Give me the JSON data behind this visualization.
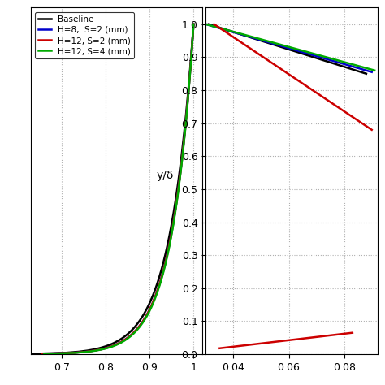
{
  "left_xlim": [
    0.63,
    1.02
  ],
  "left_xticks": [
    0.7,
    0.8,
    0.9,
    1.0
  ],
  "left_ylim": [
    0,
    1.05
  ],
  "left_yticks": [],
  "right_xlim": [
    0.03,
    0.092
  ],
  "right_xticks": [
    0.04,
    0.06,
    0.08
  ],
  "right_ylim": [
    0,
    1.05
  ],
  "right_yticks": [
    0,
    0.1,
    0.2,
    0.3,
    0.4,
    0.5,
    0.6,
    0.7,
    0.8,
    0.9,
    1.0
  ],
  "ylabel": "y/δ",
  "grid_color": "#b0b0b0",
  "bg_color": "#ffffff",
  "colors": {
    "baseline": "#000000",
    "h8s2": "#0000cc",
    "h12s2": "#cc0000",
    "h12s4": "#00aa00"
  },
  "legend_labels": [
    "Baseline",
    "H=8,  S=2 (mm)",
    "H=12, S=2 (mm)",
    "H=12, S=4 (mm)"
  ]
}
